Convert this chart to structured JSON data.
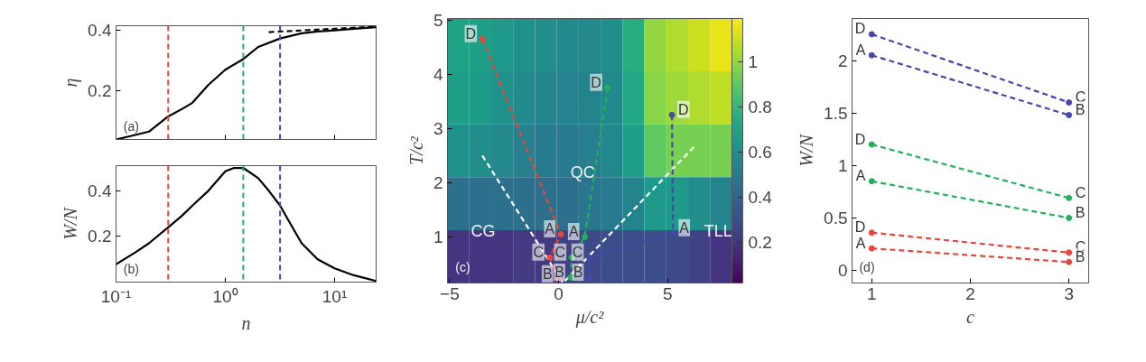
{
  "chart_data": [
    {
      "type": "line",
      "ylabel": "η",
      "log": "x",
      "xlim": [
        0.1,
        24
      ],
      "xticks": [
        {
          "value": 0.1,
          "label": null
        },
        {
          "value": 1,
          "label": null
        },
        {
          "value": 10,
          "label": null
        }
      ],
      "ylim": [
        0.04,
        0.415
      ],
      "yticks": [
        0.2,
        0.4
      ],
      "tick_labels": "y",
      "annotations": [
        "(a)"
      ],
      "series": [
        {
          "color": "#000000",
          "x": [
            0.1,
            0.15,
            0.2,
            0.3,
            0.4,
            0.5,
            0.7,
            1,
            1.46,
            2,
            3.17,
            5,
            7,
            10,
            15,
            24
          ],
          "values": [
            0.04,
            0.055,
            0.066,
            0.116,
            0.14,
            0.161,
            0.22,
            0.27,
            0.305,
            0.345,
            0.373,
            0.39,
            0.396,
            0.4,
            0.405,
            0.41
          ]
        },
        {
          "color": "#000000",
          "line_style": "dashed",
          "x": [
            2.5,
            24
          ],
          "values": [
            0.394,
            0.412
          ]
        }
      ],
      "ref_lines": [
        {
          "axis": "x",
          "value": 0.3,
          "color": "#e8463c",
          "line_style": "dashed"
        },
        {
          "axis": "x",
          "value": 1.46,
          "color": "#22b15a",
          "line_style": "dashed"
        },
        {
          "axis": "x",
          "value": 3.17,
          "color": "#4548a8",
          "line_style": "dashed"
        }
      ]
    },
    {
      "type": "line",
      "ylabel": "W/N",
      "xlabel": "n",
      "log": "x",
      "xlim": [
        0.1,
        24
      ],
      "xticks": [
        {
          "value": 0.1,
          "label": "10⁻¹"
        },
        {
          "value": 1,
          "label": "10⁰"
        },
        {
          "value": 10,
          "label": "10¹"
        }
      ],
      "ylim": [
        0,
        0.51
      ],
      "yticks": [
        0.2,
        0.4
      ],
      "annotations": [
        "(b)"
      ],
      "series": [
        {
          "color": "#000000",
          "x": [
            0.1,
            0.15,
            0.2,
            0.3,
            0.4,
            0.5,
            0.7,
            1,
            1.2,
            1.46,
            2,
            2.5,
            3.17,
            4,
            5,
            7,
            10,
            15,
            24
          ],
          "values": [
            0.078,
            0.13,
            0.17,
            0.24,
            0.29,
            0.335,
            0.4,
            0.485,
            0.5,
            0.5,
            0.455,
            0.4,
            0.335,
            0.25,
            0.17,
            0.1,
            0.06,
            0.03,
            0.005
          ]
        }
      ],
      "ref_lines": [
        {
          "axis": "x",
          "value": 0.3,
          "color": "#e8463c",
          "line_style": "dashed"
        },
        {
          "axis": "x",
          "value": 1.46,
          "color": "#22b15a",
          "line_style": "dashed"
        },
        {
          "axis": "x",
          "value": 3.17,
          "color": "#4548a8",
          "line_style": "dashed"
        }
      ]
    },
    {
      "type": "heatmap",
      "clim": [
        0.02,
        1.19
      ],
      "cticks": [
        0.2,
        0.4,
        0.6,
        0.8,
        1
      ],
      "categories": [
        null,
        null,
        null,
        null,
        null,
        null,
        null,
        null,
        null,
        null,
        null,
        null,
        null
      ],
      "y_categories": [
        null,
        null,
        null,
        null,
        null
      ],
      "cells": [
        [
          0.7,
          0.68,
          0.65,
          0.62,
          0.6,
          0.58,
          0.57,
          0.6,
          0.75,
          1.0,
          1.05,
          1.1,
          1.15
        ],
        [
          0.68,
          0.66,
          0.62,
          0.58,
          0.55,
          0.54,
          0.55,
          0.58,
          0.72,
          0.98,
          1.02,
          1.05,
          1.08
        ],
        [
          0.62,
          0.6,
          0.57,
          0.53,
          0.5,
          0.5,
          0.52,
          0.56,
          0.68,
          0.9,
          0.95,
          0.95,
          0.95
        ],
        [
          0.45,
          0.45,
          0.45,
          0.45,
          0.45,
          0.45,
          0.48,
          0.5,
          0.55,
          0.65,
          0.65,
          0.6,
          0.55
        ],
        [
          0.2,
          0.2,
          0.2,
          0.22,
          0.22,
          0.25,
          0.28,
          0.3,
          0.3,
          0.3,
          0.28,
          0.25,
          0.2
        ]
      ],
      "annotations": [
        "(c)",
        "CG",
        "QC",
        "TLL"
      ]
    },
    {
      "type": "line",
      "xlabel": "μ/c²",
      "ylabel": "T/c²",
      "xlim": [
        -5.1,
        7.95
      ],
      "xticks": [
        -5,
        0,
        5
      ],
      "ylim": [
        0.15,
        5.03
      ],
      "yticks": [
        1,
        2,
        3,
        4,
        5
      ],
      "marker": "circle",
      "line_style": "dashed",
      "series": [
        {
          "color": "#ffffff",
          "marker": "none",
          "x": [
            -3.5,
            0.2,
            6.3
          ],
          "values": [
            2.5,
            0.15,
            2.7
          ]
        },
        {
          "color": "#e8463c",
          "x": [
            -3.5,
            0.1,
            -0.4,
            0
          ],
          "values": [
            4.65,
            1.05,
            0.62,
            0.22
          ],
          "value_labels": [
            "D",
            "A",
            "C",
            "B"
          ]
        },
        {
          "color": "#22b15a",
          "x": [
            2.25,
            1.2,
            0.6,
            0.55
          ],
          "values": [
            3.75,
            1.0,
            0.62,
            0.25
          ],
          "value_labels": [
            "D",
            "A",
            "C",
            "B"
          ]
        },
        {
          "color": "#4548a8",
          "x": [
            5.2,
            5.25,
            1.4,
            1.4
          ],
          "values": [
            3.25,
            1.07,
            0.62,
            0.25
          ],
          "value_labels": [
            "D",
            "A",
            "C",
            "B"
          ]
        }
      ]
    },
    {
      "type": "line",
      "xlabel": "c",
      "ylabel": "W/N",
      "xlim": [
        0.8,
        3.2
      ],
      "xticks": [
        1,
        2,
        3
      ],
      "ylim": [
        -0.12,
        2.4
      ],
      "yticks": [
        0,
        0.5,
        1,
        1.5,
        2
      ],
      "marker": "circle",
      "line_style": "dashed",
      "annotations": [
        "(d)"
      ],
      "series": [
        {
          "color": "#4548a8",
          "x": [
            1,
            3
          ],
          "values": [
            2.25,
            1.6
          ],
          "value_labels": [
            "D",
            "C"
          ]
        },
        {
          "color": "#4548a8",
          "x": [
            1,
            3
          ],
          "values": [
            2.05,
            1.48
          ],
          "value_labels": [
            "A",
            "B"
          ]
        },
        {
          "color": "#22b15a",
          "x": [
            1,
            3
          ],
          "values": [
            1.2,
            0.69
          ],
          "value_labels": [
            "D",
            "C"
          ]
        },
        {
          "color": "#22b15a",
          "x": [
            1,
            3
          ],
          "values": [
            0.85,
            0.5
          ],
          "value_labels": [
            "A",
            "B"
          ]
        },
        {
          "color": "#e8463c",
          "x": [
            1,
            3
          ],
          "values": [
            0.36,
            0.17
          ],
          "value_labels": [
            "D",
            "C"
          ]
        },
        {
          "color": "#e8463c",
          "x": [
            1,
            3
          ],
          "values": [
            0.21,
            0.08
          ],
          "value_labels": [
            "A",
            "B"
          ]
        }
      ]
    }
  ]
}
